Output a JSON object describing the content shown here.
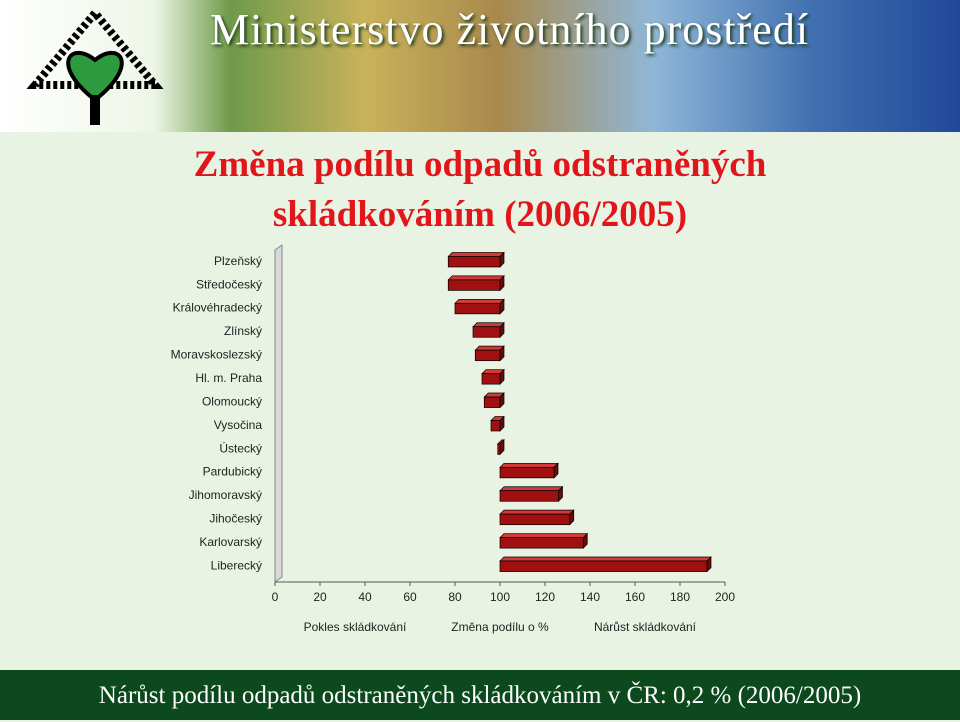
{
  "header": {
    "title": "Ministerstvo životního prostředí"
  },
  "chart_data": {
    "type": "hbar",
    "title": "Změna podílu odpadů odstraněných skládkováním (2006/2005)",
    "categories": [
      "Plzeňský",
      "Středočeský",
      "Královéhradecký",
      "Zlínský",
      "Moravskoslezský",
      "Hl. m. Praha",
      "Olomoucký",
      "Vysočina",
      "Ústecký",
      "Pardubický",
      "Jihomoravský",
      "Jihočeský",
      "Karlovarský",
      "Liberecký"
    ],
    "values": [
      77,
      77,
      80,
      88,
      89,
      92,
      93,
      96,
      99,
      124,
      126,
      131,
      137,
      192
    ],
    "baseline": 100,
    "color": "#a01010",
    "xlim": [
      0,
      200
    ],
    "xticks": [
      0,
      20,
      40,
      60,
      80,
      100,
      120,
      140,
      160,
      180,
      200
    ],
    "x_labels": [
      "Pokles skládkování",
      "Změna podílu o %",
      "Nárůst skládkování"
    ]
  },
  "footer": {
    "text": "Nárůst podílu odpadů odstraněných skládkováním v ČR: 0,2 % (2006/2005)"
  }
}
